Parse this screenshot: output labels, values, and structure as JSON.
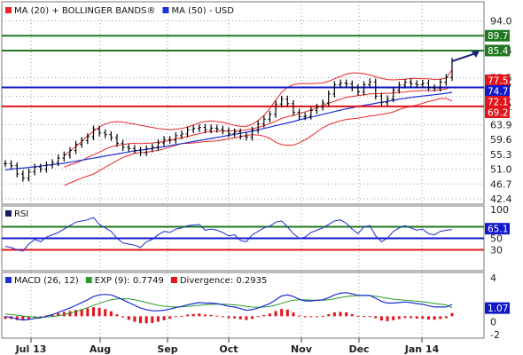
{
  "colors": {
    "price": "#000000",
    "ma20": "#e8262a",
    "ma50": "#1a2fd4",
    "bands": "#e8262a",
    "support_red": "#e0141b",
    "resistance_green": "#1f7a1f",
    "pivot_blue": "#1018c8",
    "macd": "#1a2fd4",
    "signal": "#2a9a2a",
    "divergence": "#e0141b",
    "grid": "#9a9a9a"
  },
  "chart_data": [
    {
      "type": "line",
      "panel": "price",
      "legend": [
        {
          "label": "MA (20) + BOLLINGER BANDS®",
          "color": "#e8262a"
        },
        {
          "label": "MA (50) - USD",
          "color": "#1a2fd4"
        }
      ],
      "y_ticks": [
        94.0,
        85.4,
        77.5,
        74.7,
        72.1,
        69.2,
        63.9,
        59.6,
        55.3,
        51.0,
        46.7,
        42.4
      ],
      "ylim": [
        42.4,
        98.0
      ],
      "months": [
        "Jul 13",
        "Aug",
        "Sep",
        "Oct",
        "Nov",
        "Dec",
        "Jan 14"
      ],
      "horizontal_levels": [
        {
          "value": 89.7,
          "color": "#1f7a1f",
          "label": "89.7"
        },
        {
          "value": 85.4,
          "color": "#1f7a1f",
          "label": "85.4"
        },
        {
          "value": 74.7,
          "color": "#1018c8",
          "label": "74.7"
        },
        {
          "value": 69.2,
          "color": "#e0141b",
          "label": "69.2"
        }
      ],
      "value_tags": [
        {
          "value": 77.5,
          "color": "#e0141b",
          "label": "77.5"
        },
        {
          "value": 74.7,
          "color": "#1018c8",
          "label": "74.7"
        },
        {
          "value": 72.1,
          "color": "#e0141b",
          "label": "72.1"
        },
        {
          "value": 69.2,
          "color": "#e0141b",
          "label": "69.2"
        }
      ],
      "arrow_target": 85.4,
      "series": [
        {
          "id": "price",
          "values": [
            52.6,
            52.0,
            49.6,
            48.4,
            50.2,
            51.6,
            51.0,
            52.2,
            52.9,
            54.2,
            55.1,
            56.4,
            58.2,
            59.3,
            60.4,
            62.6,
            61.5,
            61.0,
            60.2,
            58.5,
            57.3,
            57.0,
            56.5,
            55.8,
            56.9,
            57.4,
            58.6,
            59.6,
            59.4,
            60.7,
            61.2,
            62.4,
            62.8,
            63.1,
            62.4,
            62.9,
            62.6,
            62.1,
            61.3,
            61.8,
            60.6,
            60.3,
            62.3,
            64.1,
            65.5,
            66.9,
            69.9,
            71.3,
            70.0,
            67.5,
            66.2,
            66.4,
            68.0,
            69.0,
            70.2,
            72.8,
            75.5,
            76.0,
            75.7,
            74.6,
            73.4,
            75.5,
            76.3,
            72.2,
            70.3,
            71.4,
            73.9,
            75.4,
            76.2,
            75.8,
            75.5,
            75.9,
            74.6,
            74.5,
            76.2,
            77.6,
            82.3
          ]
        },
        {
          "id": "ma20",
          "values": [
            null,
            null,
            null,
            null,
            null,
            null,
            null,
            null,
            null,
            null,
            51.6,
            52.2,
            52.8,
            53.5,
            54.4,
            55.2,
            55.9,
            56.8,
            57.5,
            57.9,
            58.1,
            58.4,
            58.5,
            58.4,
            58.5,
            58.6,
            58.8,
            59.0,
            59.4,
            59.8,
            60.1,
            60.5,
            60.9,
            61.3,
            61.7,
            61.9,
            62.0,
            62.1,
            62.1,
            62.2,
            62.2,
            62.4,
            62.7,
            63.1,
            63.6,
            64.2,
            64.9,
            65.7,
            66.2,
            66.6,
            67.1,
            67.6,
            68.2,
            68.8,
            69.5,
            70.1,
            70.7,
            71.3,
            71.8,
            72.1,
            72.3,
            72.6,
            72.8,
            72.9,
            72.9,
            73.0,
            73.1,
            73.3,
            73.4,
            73.6,
            73.7,
            73.8,
            73.8,
            73.8,
            74.0,
            74.3,
            74.9
          ]
        },
        {
          "id": "upper",
          "values": [
            null,
            null,
            null,
            null,
            null,
            null,
            null,
            null,
            null,
            null,
            55.0,
            56.2,
            57.6,
            59.0,
            60.6,
            62.0,
            63.2,
            64.1,
            64.6,
            64.8,
            64.7,
            64.3,
            64.1,
            63.7,
            63.4,
            63.1,
            62.8,
            62.6,
            62.4,
            62.6,
            62.8,
            63.2,
            63.8,
            64.5,
            64.8,
            65.0,
            64.8,
            64.6,
            64.1,
            63.7,
            63.4,
            63.4,
            64.0,
            65.1,
            66.6,
            68.6,
            71.0,
            73.3,
            74.7,
            75.5,
            75.8,
            75.8,
            75.8,
            75.9,
            76.0,
            76.5,
            77.2,
            77.9,
            78.6,
            78.9,
            78.9,
            78.7,
            78.3,
            77.8,
            77.3,
            77.0,
            76.9,
            77.0,
            77.1,
            77.3,
            77.3,
            77.2,
            77.2,
            77.0,
            77.1,
            77.4,
            79.8
          ]
        },
        {
          "id": "lower",
          "values": [
            null,
            null,
            null,
            null,
            null,
            null,
            null,
            null,
            null,
            null,
            46.2,
            47.0,
            47.7,
            48.4,
            49.0,
            49.6,
            50.5,
            51.6,
            52.5,
            53.5,
            54.4,
            55.0,
            55.6,
            55.8,
            55.9,
            56.2,
            56.5,
            56.9,
            57.4,
            57.9,
            58.4,
            58.5,
            58.6,
            58.8,
            59.0,
            59.1,
            59.2,
            59.5,
            59.8,
            60.1,
            60.4,
            60.8,
            61.0,
            60.9,
            60.6,
            59.9,
            58.8,
            58.1,
            57.9,
            58.0,
            58.6,
            59.5,
            60.6,
            61.8,
            63.0,
            63.9,
            64.5,
            65.0,
            65.4,
            65.6,
            65.8,
            66.1,
            66.4,
            66.6,
            66.9,
            67.2,
            67.6,
            68.3,
            68.8,
            69.2,
            69.6,
            70.1,
            70.6,
            71.0,
            71.5,
            71.5,
            70.8
          ]
        },
        {
          "id": "ma50",
          "values": [
            50.8,
            51.0,
            51.2,
            51.3,
            51.5,
            51.7,
            51.9,
            52.1,
            52.3,
            52.5,
            52.7,
            53.0,
            53.3,
            53.6,
            53.9,
            54.2,
            54.5,
            54.8,
            55.1,
            55.4,
            55.7,
            56.0,
            56.3,
            56.5,
            56.8,
            57.0,
            57.3,
            57.5,
            57.8,
            58.1,
            58.4,
            58.7,
            59.0,
            59.3,
            59.6,
            59.9,
            60.2,
            60.5,
            60.8,
            61.1,
            61.4,
            61.7,
            62.0,
            62.4,
            62.8,
            63.2,
            63.6,
            64.0,
            64.4,
            64.8,
            65.3,
            65.7,
            66.1,
            66.5,
            66.9,
            67.3,
            67.7,
            68.1,
            68.5,
            68.8,
            69.2,
            69.5,
            69.8,
            70.1,
            70.4,
            70.7,
            71.0,
            71.3,
            71.5,
            71.8,
            72.0,
            72.2,
            72.4,
            72.6,
            72.8,
            73.0,
            73.3
          ]
        }
      ]
    },
    {
      "type": "line",
      "panel": "rsi",
      "legend": [
        {
          "label": "RSI",
          "color": "#1a1a66"
        }
      ],
      "y_ticks": [
        100,
        50,
        30
      ],
      "ylim": [
        0,
        100
      ],
      "horizontal_levels": [
        {
          "value": 70,
          "color": "#1f7a1f"
        },
        {
          "value": 50,
          "color": "#1018c8"
        },
        {
          "value": 30,
          "color": "#e0141b"
        }
      ],
      "value_tag": {
        "value": 65.1,
        "color": "#1018c8",
        "label": "65.1"
      },
      "series": [
        {
          "id": "rsi",
          "values": [
            36,
            34,
            30,
            28,
            40,
            48,
            44,
            52,
            56,
            60,
            66,
            72,
            78,
            80,
            82,
            86,
            74,
            68,
            62,
            50,
            42,
            40,
            38,
            34,
            44,
            48,
            56,
            62,
            60,
            66,
            68,
            72,
            73,
            74,
            64,
            66,
            64,
            60,
            54,
            56,
            46,
            44,
            56,
            62,
            68,
            71,
            78,
            80,
            70,
            58,
            50,
            52,
            60,
            64,
            68,
            74,
            80,
            82,
            76,
            66,
            58,
            70,
            72,
            54,
            44,
            50,
            62,
            68,
            72,
            68,
            64,
            66,
            58,
            56,
            62,
            64,
            65.1
          ]
        }
      ]
    },
    {
      "type": "line",
      "panel": "macd",
      "legend": [
        {
          "label": "MACD (26, 12)",
          "color": "#1a2fd4"
        },
        {
          "label": "EXP (9): 0.7749",
          "color": "#2a9a2a"
        },
        {
          "label": "Divergence: 0.2935",
          "color": "#e0141b"
        }
      ],
      "y_ticks": [
        4,
        0,
        -2
      ],
      "ylim": [
        -2,
        4
      ],
      "value_tag": {
        "value": 1.07,
        "color": "#1018c8",
        "label": "1.07"
      },
      "series": [
        {
          "id": "macd",
          "values": [
            -0.05,
            -0.1,
            -0.25,
            -0.35,
            -0.3,
            -0.2,
            -0.15,
            0.0,
            0.15,
            0.35,
            0.55,
            0.75,
            1.0,
            1.25,
            1.5,
            1.8,
            1.95,
            2.0,
            1.95,
            1.75,
            1.5,
            1.25,
            1.0,
            0.75,
            0.6,
            0.5,
            0.5,
            0.55,
            0.65,
            0.8,
            0.9,
            1.05,
            1.15,
            1.25,
            1.2,
            1.2,
            1.15,
            1.05,
            0.9,
            0.85,
            0.7,
            0.55,
            0.6,
            0.75,
            0.95,
            1.15,
            1.5,
            1.85,
            1.95,
            1.8,
            1.55,
            1.4,
            1.4,
            1.45,
            1.5,
            1.7,
            1.95,
            2.1,
            2.15,
            2.05,
            1.9,
            1.9,
            1.9,
            1.65,
            1.35,
            1.2,
            1.2,
            1.25,
            1.3,
            1.25,
            1.15,
            1.1,
            0.95,
            0.85,
            0.85,
            0.85,
            1.07
          ]
        },
        {
          "id": "signal",
          "values": [
            0.2,
            0.15,
            0.1,
            0.02,
            -0.05,
            -0.08,
            -0.1,
            -0.08,
            -0.03,
            0.05,
            0.15,
            0.28,
            0.42,
            0.6,
            0.78,
            0.98,
            1.18,
            1.35,
            1.5,
            1.58,
            1.6,
            1.58,
            1.5,
            1.38,
            1.25,
            1.12,
            1.0,
            0.92,
            0.87,
            0.85,
            0.86,
            0.9,
            0.95,
            1.0,
            1.05,
            1.08,
            1.1,
            1.1,
            1.08,
            1.04,
            0.98,
            0.9,
            0.84,
            0.82,
            0.84,
            0.9,
            1.02,
            1.18,
            1.34,
            1.45,
            1.5,
            1.5,
            1.48,
            1.47,
            1.47,
            1.51,
            1.6,
            1.7,
            1.8,
            1.86,
            1.88,
            1.88,
            1.88,
            1.83,
            1.74,
            1.65,
            1.56,
            1.5,
            1.46,
            1.42,
            1.37,
            1.32,
            1.25,
            1.17,
            1.1,
            1.03,
            0.77
          ]
        },
        {
          "id": "divergence",
          "values": [
            -0.25,
            -0.25,
            -0.35,
            -0.37,
            -0.25,
            -0.12,
            -0.05,
            0.08,
            0.18,
            0.3,
            0.4,
            0.47,
            0.58,
            0.65,
            0.72,
            0.82,
            0.77,
            0.65,
            0.45,
            0.17,
            -0.1,
            -0.33,
            -0.5,
            -0.63,
            -0.65,
            -0.62,
            -0.5,
            -0.37,
            -0.22,
            -0.05,
            0.04,
            0.15,
            0.2,
            0.25,
            0.15,
            0.12,
            0.05,
            -0.05,
            -0.18,
            -0.19,
            -0.28,
            -0.35,
            -0.24,
            -0.07,
            0.11,
            0.25,
            0.48,
            0.67,
            0.61,
            0.35,
            0.05,
            -0.1,
            -0.08,
            -0.02,
            0.03,
            0.19,
            0.35,
            0.4,
            0.35,
            0.19,
            0.02,
            0.02,
            0.02,
            -0.18,
            -0.39,
            -0.45,
            -0.36,
            -0.25,
            -0.16,
            -0.17,
            -0.22,
            -0.22,
            -0.3,
            -0.32,
            -0.25,
            -0.18,
            0.2935
          ]
        }
      ]
    }
  ]
}
